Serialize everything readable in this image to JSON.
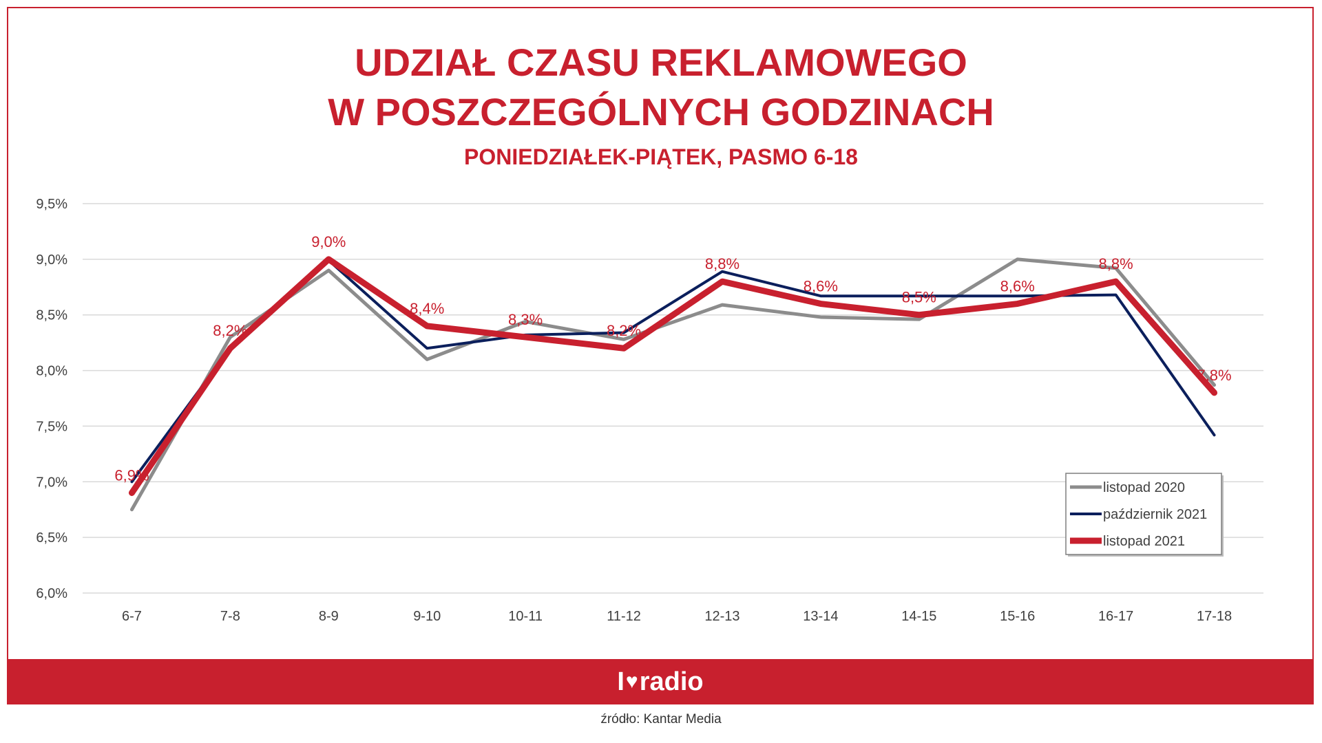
{
  "source": "źródło: Kantar Media",
  "logo": {
    "left": "I",
    "heart": "♥",
    "right": "radio"
  },
  "colors": {
    "brand": "#c8202e",
    "grid": "#d9d9d9",
    "series_gray": "#8c8c8c",
    "series_navy": "#0b1f5c",
    "series_red": "#c8202e"
  },
  "chart_data": {
    "type": "line",
    "title": [
      "UDZIAŁ CZASU REKLAMOWEGO",
      "W POSZCZEGÓLNYCH GODZINACH"
    ],
    "subtitle": "PONIEDZIAŁEK-PIĄTEK, PASMO 6-18",
    "categories": [
      "6-7",
      "7-8",
      "8-9",
      "9-10",
      "10-11",
      "11-12",
      "12-13",
      "13-14",
      "14-15",
      "15-16",
      "16-17",
      "17-18"
    ],
    "ylim": [
      6.0,
      9.5
    ],
    "yticks": [
      6.0,
      6.5,
      7.0,
      7.5,
      8.0,
      8.5,
      9.0,
      9.5
    ],
    "ytick_labels": [
      "6,0%",
      "6,5%",
      "7,0%",
      "7,5%",
      "8,0%",
      "8,5%",
      "9,0%",
      "9,5%"
    ],
    "grid": true,
    "legend_position": "bottom-right",
    "series": [
      {
        "name": "listopad 2020",
        "color": "#8c8c8c",
        "values": [
          6.75,
          8.3,
          8.9,
          8.1,
          8.44,
          8.28,
          8.59,
          8.48,
          8.46,
          9.0,
          8.92,
          7.87
        ]
      },
      {
        "name": "październik 2021",
        "color": "#0b1f5c",
        "values": [
          7.0,
          8.2,
          8.99,
          8.2,
          8.32,
          8.34,
          8.89,
          8.67,
          8.67,
          8.67,
          8.68,
          7.42
        ]
      },
      {
        "name": "listopad 2021",
        "color": "#c8202e",
        "values": [
          6.9,
          8.2,
          9.0,
          8.4,
          8.3,
          8.2,
          8.8,
          8.6,
          8.5,
          8.6,
          8.8,
          7.8
        ],
        "data_labels": [
          "6,9%",
          "8,2%",
          "9,0%",
          "8,4%",
          "8,3%",
          "8,2%",
          "8,8%",
          "8,6%",
          "8,5%",
          "8,6%",
          "8,8%",
          "7,8%"
        ]
      }
    ]
  }
}
